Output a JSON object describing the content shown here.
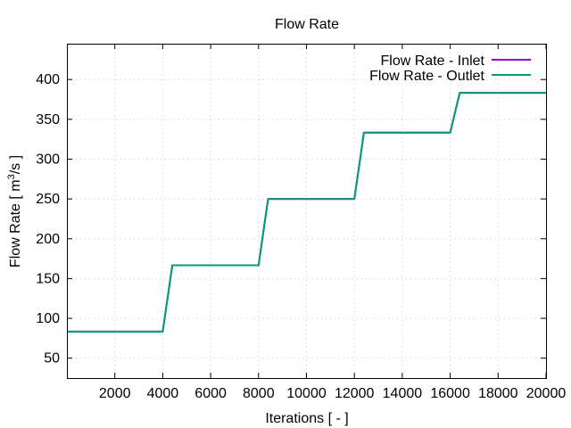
{
  "chart_data": {
    "type": "line",
    "title": "Flow Rate",
    "xlabel": "Iterations [ - ]",
    "ylabel_prefix": "Flow Rate [ m",
    "ylabel_sup": "3",
    "ylabel_suffix": "/s ]",
    "xlim": [
      0,
      20000
    ],
    "ylim": [
      25,
      445
    ],
    "xticks": [
      2000,
      4000,
      6000,
      8000,
      10000,
      12000,
      14000,
      16000,
      18000,
      20000
    ],
    "yticks": [
      50,
      100,
      150,
      200,
      250,
      300,
      350,
      400
    ],
    "grid": true,
    "legend_position": "top-right",
    "series": [
      {
        "name": "Flow Rate - Inlet",
        "color": "#9400d3",
        "x": [
          0,
          4000,
          4400,
          8000,
          8400,
          12000,
          12400,
          16000,
          16400,
          20000
        ],
        "y": [
          83.3,
          83.3,
          166.7,
          166.7,
          250,
          250,
          333.3,
          333.3,
          383.3,
          383.3
        ]
      },
      {
        "name": "Flow Rate - Outlet",
        "color": "#009e73",
        "x": [
          0,
          4000,
          4400,
          8000,
          8400,
          12000,
          12400,
          16000,
          16400,
          20000
        ],
        "y": [
          83.3,
          83.3,
          166.7,
          166.7,
          250,
          250,
          333.3,
          333.3,
          383.3,
          383.3
        ]
      }
    ]
  }
}
